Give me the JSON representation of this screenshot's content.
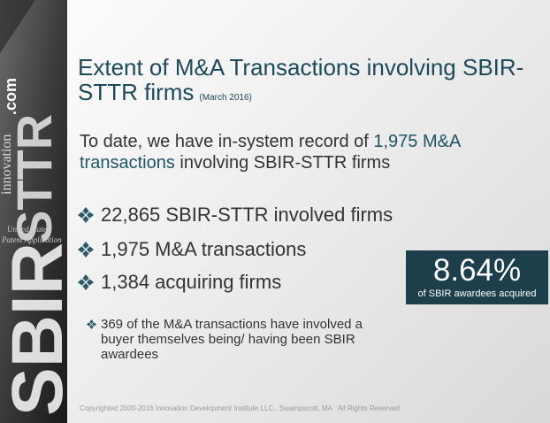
{
  "sidebar": {
    "brand_a": "SBIR",
    "brand_b": "STTR",
    "site": "innovation",
    "domain": ".com",
    "stamp_1": "United States",
    "stamp_2": "Patent Application"
  },
  "title": "Extent of M&A Transactions involving SBIR-STTR firms",
  "date": "(March 2016)",
  "intro": {
    "before": "To date, we have in-system record of ",
    "highlight": "1,975 M&A transactions",
    "after": " involving SBIR-STTR firms"
  },
  "bullets": [
    "22,865 SBIR-STTR involved firms",
    "1,975 M&A transactions",
    "1,384 acquiring firms"
  ],
  "callout": {
    "value": "8.64%",
    "caption": "of SBIR awardees acquired"
  },
  "note": "369 of the M&A transactions have involved a buyer themselves being/ having been SBIR awardees",
  "footer": "Copyrighted 2000-2016 Innovation Development Institute LLC., Swampscott, MA   All Rights Reserved"
}
